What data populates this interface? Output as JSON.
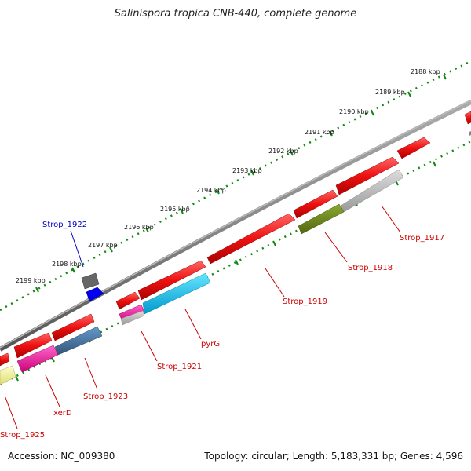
{
  "title": "Salinispora tropica CNB-440, complete genome",
  "footer": {
    "accession": "Accession: NC_009380",
    "summary": "Topology: circular; Length: 5,183,331 bp; Genes: 4,596"
  },
  "scale_labels": [
    "2188 kbp",
    "2189 kbp",
    "2190 kbp",
    "2191 kbp",
    "2192 kbp",
    "2193 kbp",
    "2194 kbp",
    "2195 kbp",
    "2196 kbp",
    "2197 kbp",
    "2198 kbp",
    "2199 kbp"
  ],
  "gene_labels": {
    "strop_1922": "Strop_1922",
    "strop_1917": "Strop_1917",
    "strop_1918": "Strop_1918",
    "strop_1919": "Strop_1919",
    "pyrg": "pyrG",
    "strop_1921": "Strop_1921",
    "strop_1923": "Strop_1923",
    "xerd": "xerD",
    "strop_1925": "Strop_1925"
  },
  "colors": {
    "cds_red": "#ee1111",
    "backbone": "#888888",
    "tick_green": "#118811",
    "label_red": "#cc0000",
    "label_blue": "#0000cc",
    "cyan": "#22ccee",
    "olive": "#668822",
    "gray": "#bbbbbb",
    "steel_blue": "#4477aa",
    "magenta": "#ee1199",
    "yellow": "#eeee99",
    "dark_gray": "#666666",
    "blue": "#0000ee"
  }
}
